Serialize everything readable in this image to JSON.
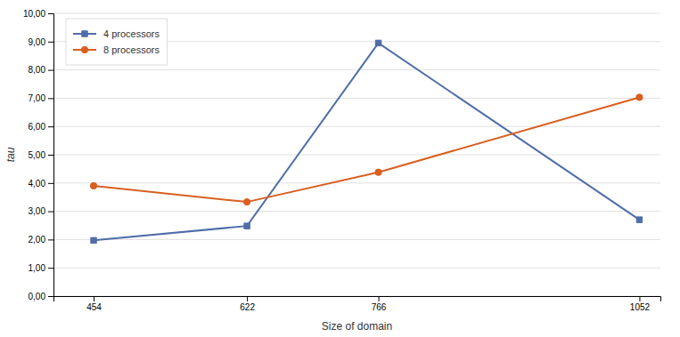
{
  "chart_data": {
    "type": "line",
    "xlabel": "Size of domain",
    "ylabel": "tau",
    "x": [
      454,
      622,
      766,
      1052
    ],
    "series": [
      {
        "name": "4 processors",
        "color": "#4F6EA8",
        "marker": "square",
        "values": [
          1.97,
          2.48,
          8.95,
          2.7
        ]
      },
      {
        "name": "8 processors",
        "color": "#D95F20",
        "marker": "circle",
        "values": [
          3.9,
          3.33,
          4.38,
          7.03
        ]
      }
    ],
    "xlim": [
      410,
      1075
    ],
    "xticks": [
      454,
      622,
      766,
      1052
    ],
    "ylim": [
      0.0,
      10.0
    ],
    "yticks": [
      {
        "value": 0,
        "label": "0,00"
      },
      {
        "value": 1,
        "label": "1,00"
      },
      {
        "value": 2,
        "label": "2,00"
      },
      {
        "value": 3,
        "label": "3,00"
      },
      {
        "value": 4,
        "label": "4,00"
      },
      {
        "value": 5,
        "label": "5,00"
      },
      {
        "value": 6,
        "label": "6,00"
      },
      {
        "value": 7,
        "label": "7,00"
      },
      {
        "value": 8,
        "label": "8,00"
      },
      {
        "value": 9,
        "label": "9,00"
      },
      {
        "value": 10,
        "label": "10,00"
      }
    ],
    "grid": true,
    "legend": "upper left"
  }
}
